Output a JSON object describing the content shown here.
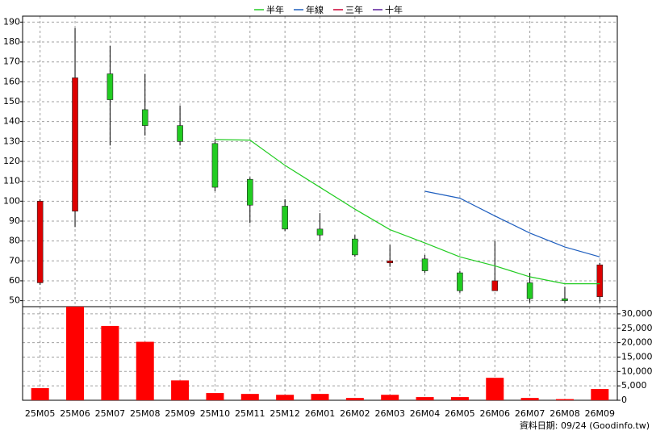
{
  "chart_data": {
    "type": "candlestick",
    "categories": [
      "25M05",
      "25M06",
      "25M07",
      "25M08",
      "25M09",
      "25M10",
      "25M11",
      "25M12",
      "26M01",
      "26M02",
      "26M03",
      "26M04",
      "26M05",
      "26M06",
      "26M07",
      "26M08",
      "26M09"
    ],
    "open": [
      59,
      95,
      164,
      146,
      138,
      129,
      111,
      97.5,
      86,
      81,
      69,
      71,
      64,
      55,
      59,
      51,
      52
    ],
    "high": [
      101,
      187,
      178,
      164,
      148,
      131,
      112,
      101,
      94,
      83,
      78,
      73,
      65,
      80,
      64,
      57,
      69
    ],
    "low": [
      58,
      87,
      128,
      133,
      128,
      105,
      89,
      85,
      80,
      72,
      67,
      64,
      54,
      55,
      49,
      49,
      49
    ],
    "close": [
      100,
      162,
      151,
      138,
      130,
      107,
      98,
      86,
      83,
      73,
      70,
      65,
      55,
      60,
      51,
      50,
      68
    ],
    "up_color": "#dd0000",
    "down_color": "#22cc22",
    "series": [
      {
        "name": "半年",
        "color": "#22cc22",
        "values": [
          null,
          null,
          null,
          null,
          null,
          131,
          130.7,
          118,
          107,
          96,
          85.7,
          79,
          72,
          67.5,
          62,
          58.5,
          58.5
        ]
      },
      {
        "name": "年線",
        "color": "#1f5fbf",
        "values": [
          null,
          null,
          null,
          null,
          null,
          null,
          null,
          null,
          null,
          null,
          null,
          105,
          101.5,
          92.6,
          84,
          77,
          72
        ]
      },
      {
        "name": "三年",
        "color": "#cc0033",
        "values": [
          null,
          null,
          null,
          null,
          null,
          null,
          null,
          null,
          null,
          null,
          null,
          null,
          null,
          null,
          null,
          null,
          null
        ]
      },
      {
        "name": "十年",
        "color": "#5a1f9a",
        "values": [
          null,
          null,
          null,
          null,
          null,
          null,
          null,
          null,
          null,
          null,
          null,
          null,
          null,
          null,
          null,
          null,
          null
        ]
      }
    ],
    "volume": {
      "color": "#ff0000",
      "axis": "y2",
      "values": [
        4200,
        32500,
        25800,
        20300,
        6900,
        2500,
        2200,
        1900,
        2200,
        800,
        1900,
        1100,
        1100,
        7800,
        800,
        400,
        3900
      ]
    },
    "ylim": [
      47,
      193
    ],
    "yticks": [
      50,
      60,
      70,
      80,
      90,
      100,
      110,
      120,
      130,
      140,
      150,
      160,
      170,
      180,
      190
    ],
    "y2lim": [
      0,
      32500
    ],
    "y2ticks": [
      0,
      {
        "value": 5000,
        "label": "5,000"
      },
      {
        "value": 10000,
        "label": "10,000"
      },
      {
        "value": 15000,
        "label": "15,000"
      },
      {
        "value": 20000,
        "label": "20,000"
      },
      {
        "value": 25000,
        "label": "25,000"
      },
      {
        "value": 30000,
        "label": "30,000"
      }
    ],
    "grid": true,
    "legend": "top",
    "source": "資料日期: 09/24  (Goodinfo.tw)"
  }
}
